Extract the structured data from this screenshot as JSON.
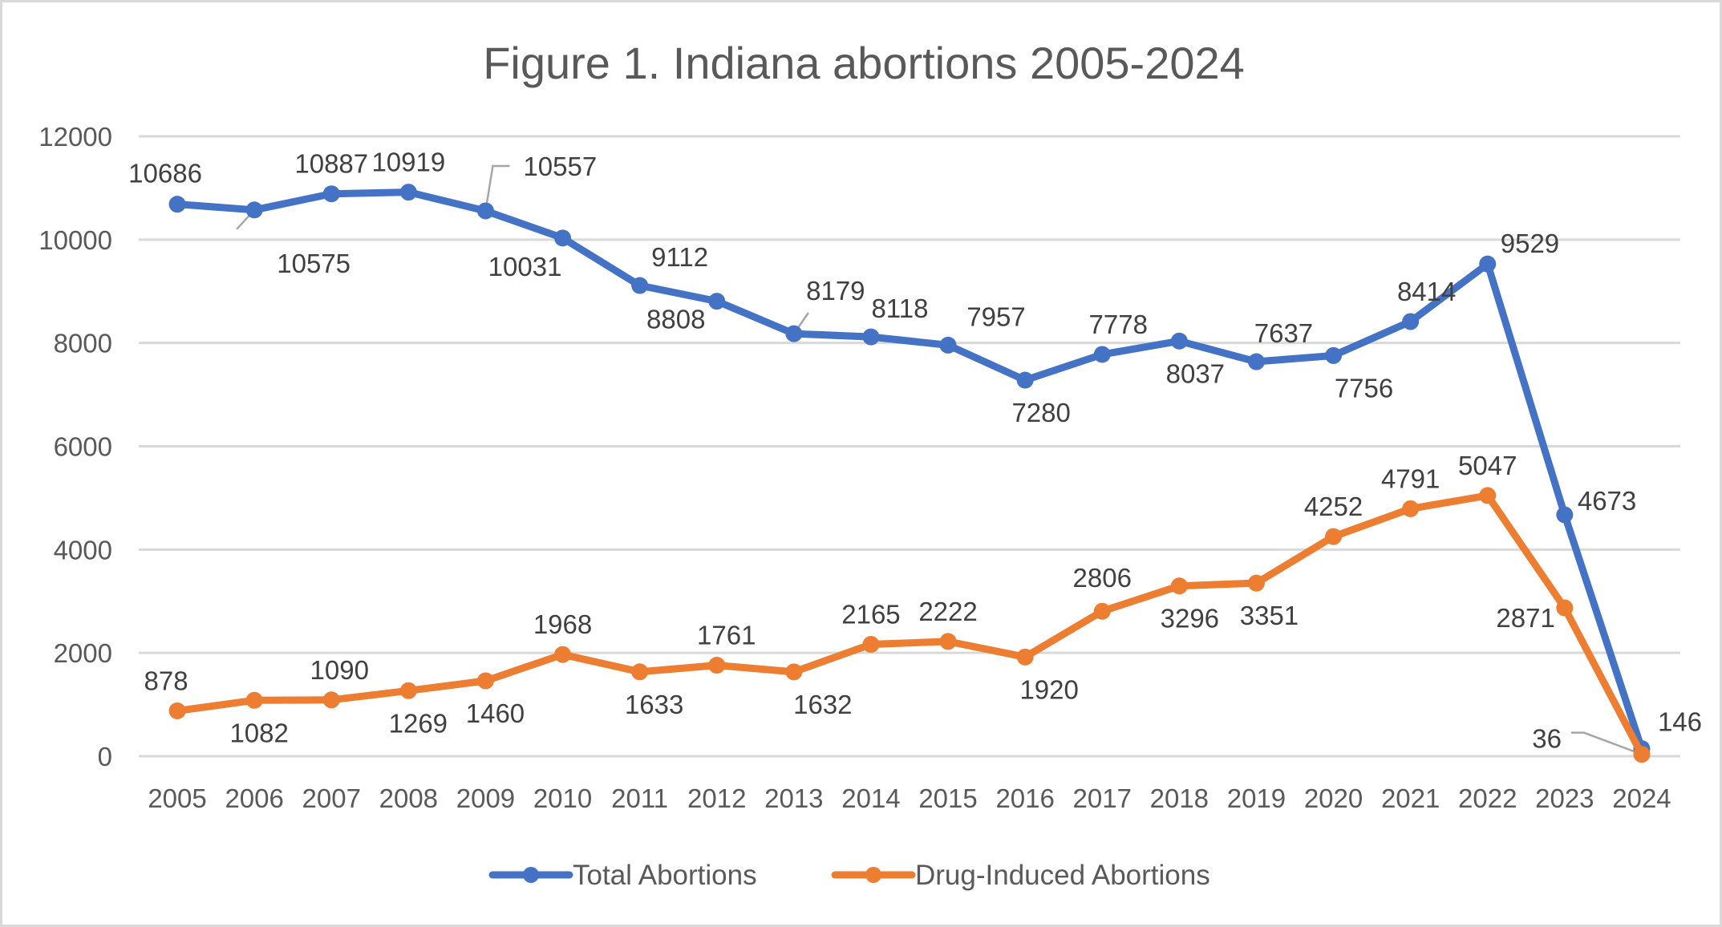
{
  "chart_data": {
    "type": "line",
    "title": "Figure 1. Indiana abortions 2005-2024",
    "xlabel": "",
    "ylabel": "",
    "categories": [
      "2005",
      "2006",
      "2007",
      "2008",
      "2009",
      "2010",
      "2011",
      "2012",
      "2013",
      "2014",
      "2015",
      "2016",
      "2017",
      "2018",
      "2019",
      "2020",
      "2021",
      "2022",
      "2023",
      "2024"
    ],
    "ylim": [
      0,
      12000
    ],
    "yticks": [
      0,
      2000,
      4000,
      6000,
      8000,
      10000,
      12000
    ],
    "ytick_labels": [
      "0",
      "2000",
      "4000",
      "6000",
      "8000",
      "10000",
      "12000"
    ],
    "grid": true,
    "legend_position": "bottom",
    "series": [
      {
        "name": "Total Abortions",
        "color": "#4472C4",
        "values": [
          10686,
          10575,
          10887,
          10919,
          10557,
          10031,
          9112,
          8808,
          8179,
          8118,
          7957,
          7280,
          7778,
          8037,
          7637,
          7756,
          8414,
          9529,
          4673,
          146
        ],
        "labels": [
          "10686",
          "10575",
          "10887",
          "10919",
          "10557",
          "10031",
          "9112",
          "8808",
          "8179",
          "8118",
          "7957",
          "7280",
          "7778",
          "8037",
          "7637",
          "7756",
          "8414",
          "9529",
          "4673",
          "146"
        ]
      },
      {
        "name": "Drug-Induced Abortions",
        "color": "#ED7D31",
        "values": [
          878,
          1082,
          1090,
          1269,
          1460,
          1968,
          1633,
          1761,
          1632,
          2165,
          2222,
          1920,
          2806,
          3296,
          3351,
          4252,
          4791,
          5047,
          2871,
          36
        ],
        "labels": [
          "878",
          "1082",
          "1090",
          "1269",
          "1460",
          "1968",
          "1633",
          "1761",
          "1632",
          "2165",
          "2222",
          "1920",
          "2806",
          "3296",
          "3351",
          "4252",
          "4791",
          "5047",
          "2871",
          "36"
        ]
      }
    ]
  }
}
